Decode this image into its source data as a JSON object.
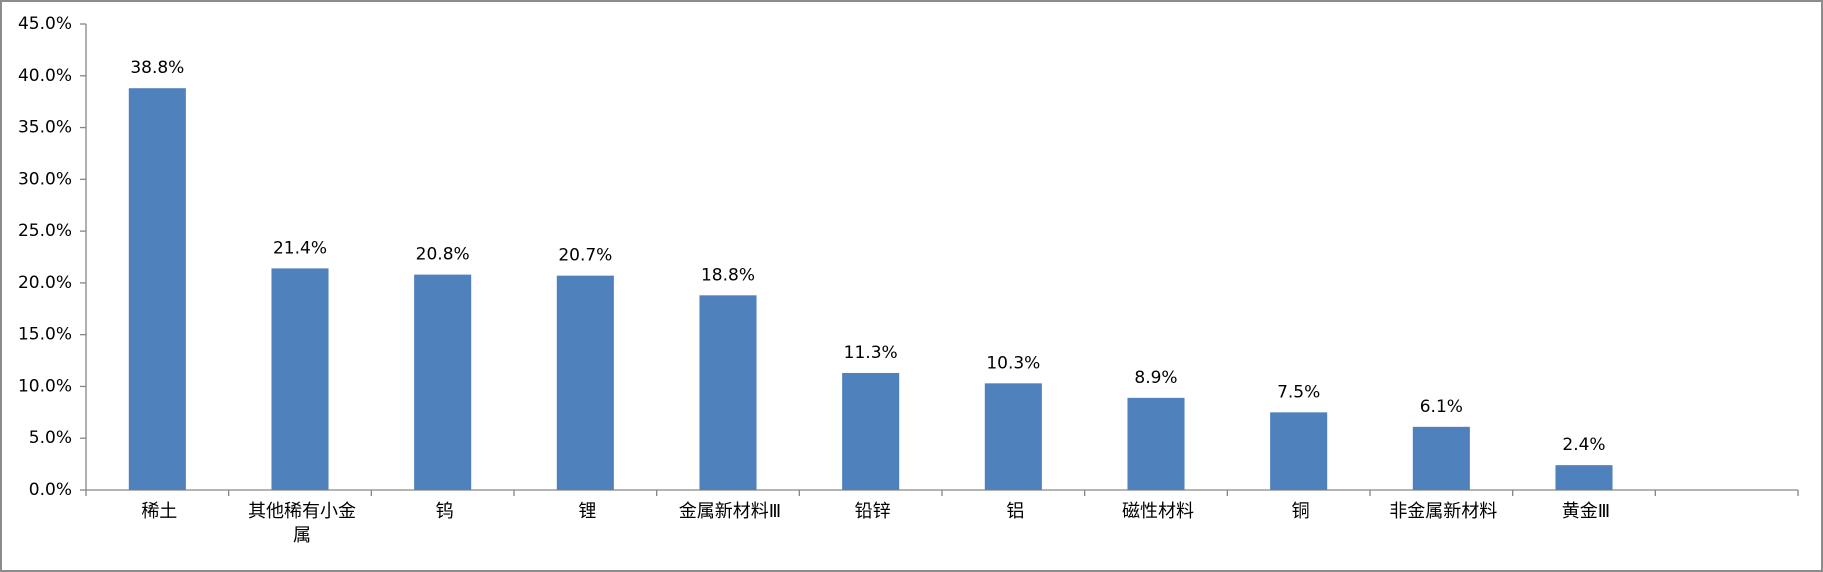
{
  "chart_data": {
    "type": "bar",
    "categories": [
      "稀土",
      "其他稀有小金属",
      "钨",
      "锂",
      "金属新材料Ⅲ",
      "铅锌",
      "铝",
      "磁性材料",
      "铜",
      "非金属新材料",
      "黄金Ⅲ",
      null
    ],
    "values": [
      38.8,
      21.4,
      20.8,
      20.7,
      18.8,
      11.3,
      10.3,
      8.9,
      7.5,
      6.1,
      2.4,
      null
    ],
    "value_labels": [
      "38.8%",
      "21.4%",
      "20.8%",
      "20.7%",
      "18.8%",
      "11.3%",
      "10.3%",
      "8.9%",
      "7.5%",
      "6.1%",
      "2.4%",
      null
    ],
    "color": "#4f81bd",
    "ylim": [
      0,
      45
    ],
    "yticks": [
      {
        "value": 0,
        "label": "0.0%"
      },
      {
        "value": 5,
        "label": "5.0%"
      },
      {
        "value": 10,
        "label": "10.0%"
      },
      {
        "value": 15,
        "label": "15.0%"
      },
      {
        "value": 20,
        "label": "20.0%"
      },
      {
        "value": 25,
        "label": "25.0%"
      },
      {
        "value": 30,
        "label": "30.0%"
      },
      {
        "value": 35,
        "label": "35.0%"
      },
      {
        "value": 40,
        "label": "40.0%"
      },
      {
        "value": 45,
        "label": "45.0%"
      }
    ]
  }
}
